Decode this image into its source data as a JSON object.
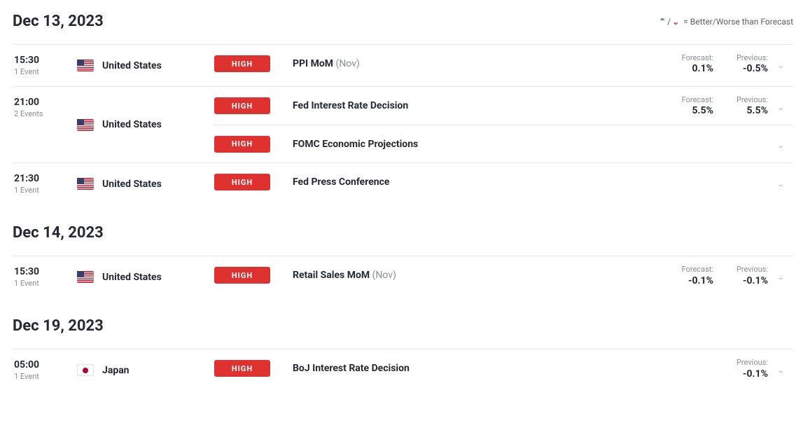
{
  "legend_text": "= Better/Worse than Forecast",
  "forecast_label": "Forecast:",
  "previous_label": "Previous:",
  "impact_high_label": "HIGH",
  "days": [
    {
      "title": "Dec 13, 2023",
      "show_legend": true,
      "groups": [
        {
          "time": "15:30",
          "count": "1 Event",
          "country": "United States",
          "flag": "us",
          "events": [
            {
              "name": "PPI MoM",
              "period": "(Nov)",
              "forecast": "0.1%",
              "previous": "-0.5%"
            }
          ]
        },
        {
          "time": "21:00",
          "count": "2 Events",
          "country": "United States",
          "flag": "us",
          "events": [
            {
              "name": "Fed Interest Rate Decision",
              "period": "",
              "forecast": "5.5%",
              "previous": "5.5%"
            },
            {
              "name": "FOMC Economic Projections",
              "period": "",
              "forecast": "",
              "previous": ""
            }
          ]
        },
        {
          "time": "21:30",
          "count": "1 Event",
          "country": "United States",
          "flag": "us",
          "events": [
            {
              "name": "Fed Press Conference",
              "period": "",
              "forecast": "",
              "previous": ""
            }
          ]
        }
      ]
    },
    {
      "title": "Dec 14, 2023",
      "show_legend": false,
      "groups": [
        {
          "time": "15:30",
          "count": "1 Event",
          "country": "United States",
          "flag": "us",
          "events": [
            {
              "name": "Retail Sales MoM",
              "period": "(Nov)",
              "forecast": "-0.1%",
              "previous": "-0.1%"
            }
          ]
        }
      ]
    },
    {
      "title": "Dec 19, 2023",
      "show_legend": false,
      "groups": [
        {
          "time": "05:00",
          "count": "1 Event",
          "country": "Japan",
          "flag": "jp",
          "events": [
            {
              "name": "BoJ Interest Rate Decision",
              "period": "",
              "forecast": "",
              "previous": "-0.1%"
            }
          ]
        }
      ]
    }
  ]
}
